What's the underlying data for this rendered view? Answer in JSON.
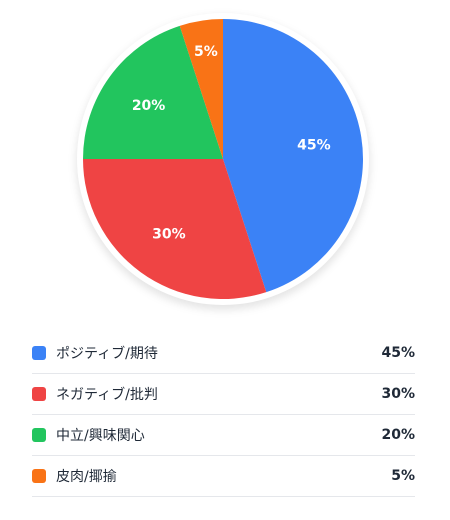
{
  "chart_data": {
    "type": "pie",
    "categories": [
      "ポジティブ/期待",
      "ネガティブ/批判",
      "中立/興味関心",
      "皮肉/揶揄"
    ],
    "values": [
      45,
      30,
      20,
      5
    ],
    "slice_labels": [
      "45%",
      "30%",
      "20%",
      "5%"
    ],
    "colors": [
      "#3b82f6",
      "#ef4444",
      "#22c55e",
      "#f97316"
    ],
    "start": "top",
    "direction": "clockwise"
  },
  "legend": {
    "items": [
      {
        "label": "ポジティブ/期待",
        "value": "45%",
        "color": "#3b82f6"
      },
      {
        "label": "ネガティブ/批判",
        "value": "30%",
        "color": "#ef4444"
      },
      {
        "label": "中立/興味関心",
        "value": "20%",
        "color": "#22c55e"
      },
      {
        "label": "皮肉/揶揄",
        "value": "5%",
        "color": "#f97316"
      }
    ]
  }
}
